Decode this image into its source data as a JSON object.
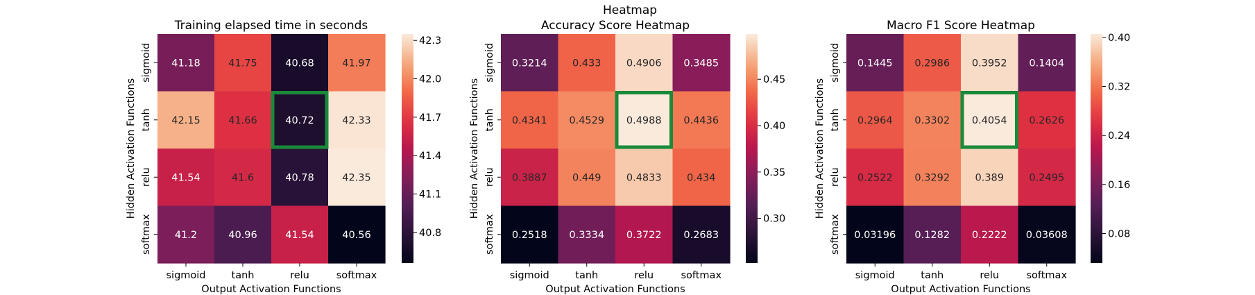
{
  "figure_title": "Heatmap",
  "chart_data": [
    {
      "type": "heatmap",
      "title": "Training elapsed time in seconds",
      "xlabel": "Output Activation Functions",
      "ylabel": "Hidden Activation Functions",
      "x_categories": [
        "sigmoid",
        "tanh",
        "relu",
        "softmax"
      ],
      "y_categories": [
        "sigmoid",
        "tanh",
        "relu",
        "softmax"
      ],
      "values": [
        [
          41.18,
          41.75,
          40.68,
          41.97
        ],
        [
          42.15,
          41.66,
          40.72,
          42.33
        ],
        [
          41.54,
          41.6,
          40.78,
          42.35
        ],
        [
          41.2,
          40.96,
          41.54,
          40.56
        ]
      ],
      "value_labels": [
        [
          "41.18",
          "41.75",
          "40.68",
          "41.97"
        ],
        [
          "42.15",
          "41.66",
          "40.72",
          "42.33"
        ],
        [
          "41.54",
          "41.6",
          "40.78",
          "42.35"
        ],
        [
          "41.2",
          "40.96",
          "41.54",
          "40.56"
        ]
      ],
      "colorbar": {
        "min": 40.56,
        "max": 42.35,
        "ticks": [
          40.8,
          41.1,
          41.4,
          41.7,
          42.0,
          42.3
        ],
        "tick_labels": [
          "40.8",
          "41.1",
          "41.4",
          "41.7",
          "42.0",
          "42.3"
        ]
      },
      "highlight": {
        "row": 1,
        "col": 2,
        "color": "#1a8a3a"
      }
    },
    {
      "type": "heatmap",
      "title": "Accuracy Score Heatmap",
      "xlabel": "Output Activation Functions",
      "ylabel": "Hidden Activation Functions",
      "x_categories": [
        "sigmoid",
        "tanh",
        "relu",
        "softmax"
      ],
      "y_categories": [
        "sigmoid",
        "tanh",
        "relu",
        "softmax"
      ],
      "values": [
        [
          0.3214,
          0.433,
          0.4906,
          0.3485
        ],
        [
          0.4341,
          0.4529,
          0.4988,
          0.4436
        ],
        [
          0.3887,
          0.449,
          0.4833,
          0.434
        ],
        [
          0.2518,
          0.3334,
          0.3722,
          0.2683
        ]
      ],
      "value_labels": [
        [
          "0.3214",
          "0.433",
          "0.4906",
          "0.3485"
        ],
        [
          "0.4341",
          "0.4529",
          "0.4988",
          "0.4436"
        ],
        [
          "0.3887",
          "0.449",
          "0.4833",
          "0.434"
        ],
        [
          "0.2518",
          "0.3334",
          "0.3722",
          "0.2683"
        ]
      ],
      "colorbar": {
        "min": 0.2518,
        "max": 0.4988,
        "ticks": [
          0.3,
          0.35,
          0.4,
          0.45
        ],
        "tick_labels": [
          "0.30",
          "0.35",
          "0.40",
          "0.45"
        ]
      },
      "highlight": {
        "row": 1,
        "col": 2,
        "color": "#1a8a3a"
      }
    },
    {
      "type": "heatmap",
      "title": "Macro F1 Score Heatmap",
      "xlabel": "Output Activation Functions",
      "ylabel": "Hidden Activation Functions",
      "x_categories": [
        "sigmoid",
        "tanh",
        "relu",
        "softmax"
      ],
      "y_categories": [
        "sigmoid",
        "tanh",
        "relu",
        "softmax"
      ],
      "values": [
        [
          0.1445,
          0.2986,
          0.3952,
          0.1404
        ],
        [
          0.2964,
          0.3302,
          0.4054,
          0.2626
        ],
        [
          0.2522,
          0.3292,
          0.389,
          0.2495
        ],
        [
          0.03196,
          0.1282,
          0.2222,
          0.03608
        ]
      ],
      "value_labels": [
        [
          "0.1445",
          "0.2986",
          "0.3952",
          "0.1404"
        ],
        [
          "0.2964",
          "0.3302",
          "0.4054",
          "0.2626"
        ],
        [
          "0.2522",
          "0.3292",
          "0.389",
          "0.2495"
        ],
        [
          "0.03196",
          "0.1282",
          "0.2222",
          "0.03608"
        ]
      ],
      "colorbar": {
        "min": 0.03196,
        "max": 0.4054,
        "ticks": [
          0.08,
          0.16,
          0.24,
          0.32,
          0.4
        ],
        "tick_labels": [
          "0.08",
          "0.16",
          "0.24",
          "0.32",
          "0.40"
        ]
      },
      "highlight": {
        "row": 1,
        "col": 2,
        "color": "#1a8a3a"
      }
    }
  ]
}
